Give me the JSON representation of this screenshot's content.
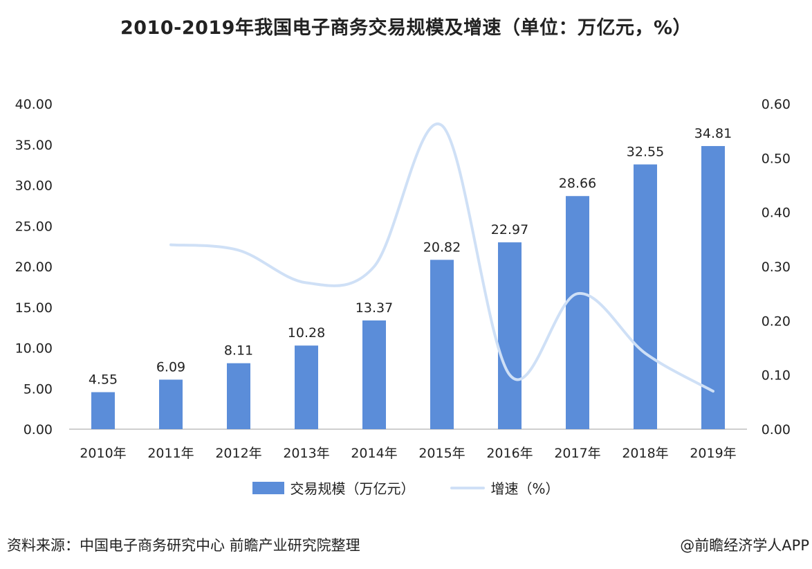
{
  "title": "2010-2019年我国电子商务交易规模及增速（单位：万亿元，%）",
  "footer": {
    "source": "资料来源：中国电子商务研究中心 前瞻产业研究院整理",
    "credit": "@前瞻经济学人APP"
  },
  "colors": {
    "bar": "#5b8dd9",
    "line": "#cfe0f6",
    "axis": "#bfbfbf",
    "text": "#222222"
  },
  "legend": {
    "bar_label": "交易规模（万亿元）",
    "line_label": "增速（%）"
  },
  "chart_data": {
    "type": "bar",
    "title": "2010-2019年我国电子商务交易规模及增速（单位：万亿元，%）",
    "categories": [
      "2010年",
      "2011年",
      "2012年",
      "2013年",
      "2014年",
      "2015年",
      "2016年",
      "2017年",
      "2018年",
      "2019年"
    ],
    "series": [
      {
        "name": "交易规模（万亿元）",
        "type": "bar",
        "axis": "left",
        "values": [
          4.55,
          6.09,
          8.11,
          10.28,
          13.37,
          20.82,
          22.97,
          28.66,
          32.55,
          34.81
        ],
        "labels": [
          "4.55",
          "6.09",
          "8.11",
          "10.28",
          "13.37",
          "20.82",
          "22.97",
          "28.66",
          "32.55",
          "34.81"
        ]
      },
      {
        "name": "增速（%）",
        "type": "line",
        "axis": "right",
        "smooth": true,
        "values": [
          null,
          0.34,
          0.33,
          0.27,
          0.3,
          0.56,
          0.1,
          0.25,
          0.14,
          0.07
        ]
      }
    ],
    "y_left": {
      "range": [
        0,
        40
      ],
      "ticks": [
        "0.00",
        "5.00",
        "10.00",
        "15.00",
        "20.00",
        "25.00",
        "30.00",
        "35.00",
        "40.00"
      ]
    },
    "y_right": {
      "range": [
        0,
        0.6
      ],
      "ticks": [
        "0.00",
        "0.10",
        "0.20",
        "0.30",
        "0.40",
        "0.50",
        "0.60"
      ]
    },
    "grid": false,
    "legend_position": "bottom"
  }
}
